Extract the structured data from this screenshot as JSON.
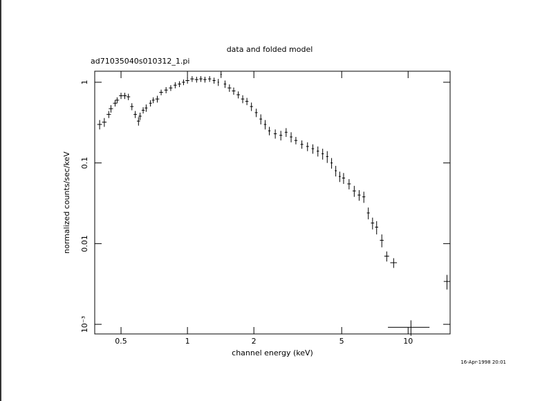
{
  "chart_data": {
    "type": "errorbar",
    "title": "data and folded model",
    "subtitle": "ad71035040s010312_1.pi",
    "xlabel": "channel energy (keV)",
    "ylabel": "normalized counts/sec/keV",
    "timestamp": "16-Apr-1998 20:01",
    "xscale": "log",
    "yscale": "log",
    "xlim": [
      0.38,
      15.5
    ],
    "ylim": [
      0.00076,
      1.37
    ],
    "xticks": [
      0.5,
      1,
      2,
      5,
      10
    ],
    "yticks": [
      {
        "value": 0.001,
        "label": "10⁻³"
      },
      0.01,
      0.1,
      1
    ],
    "color": "#000000",
    "x": [
      0.4,
      0.42,
      0.44,
      0.45,
      0.47,
      0.48,
      0.5,
      0.52,
      0.54,
      0.56,
      0.58,
      0.6,
      0.61,
      0.63,
      0.65,
      0.68,
      0.7,
      0.73,
      0.76,
      0.8,
      0.84,
      0.88,
      0.92,
      0.96,
      1.0,
      1.05,
      1.1,
      1.15,
      1.2,
      1.26,
      1.32,
      1.38,
      1.42,
      1.48,
      1.55,
      1.62,
      1.7,
      1.78,
      1.86,
      1.95,
      2.05,
      2.15,
      2.25,
      2.35,
      2.5,
      2.65,
      2.8,
      2.95,
      3.1,
      3.3,
      3.5,
      3.7,
      3.9,
      4.1,
      4.3,
      4.5,
      4.7,
      4.9,
      5.1,
      5.4,
      5.7,
      6.0,
      6.3,
      6.6,
      6.9,
      7.2,
      7.6,
      8.0,
      8.6,
      10.3,
      15.0
    ],
    "values": [
      0.3,
      0.32,
      0.4,
      0.47,
      0.55,
      0.6,
      0.68,
      0.68,
      0.66,
      0.5,
      0.4,
      0.33,
      0.38,
      0.45,
      0.48,
      0.55,
      0.6,
      0.62,
      0.75,
      0.8,
      0.85,
      0.92,
      0.95,
      1.0,
      1.05,
      1.1,
      1.08,
      1.1,
      1.08,
      1.1,
      1.05,
      1.0,
      1.25,
      0.95,
      0.85,
      0.78,
      0.7,
      0.62,
      0.58,
      0.5,
      0.42,
      0.35,
      0.3,
      0.25,
      0.23,
      0.22,
      0.24,
      0.21,
      0.19,
      0.17,
      0.16,
      0.15,
      0.14,
      0.13,
      0.12,
      0.1,
      0.08,
      0.068,
      0.065,
      0.055,
      0.045,
      0.04,
      0.038,
      0.024,
      0.018,
      0.016,
      0.011,
      0.007,
      0.0058,
      0.00092,
      0.0034
    ],
    "xerr": [
      0.01,
      0.01,
      0.01,
      0.01,
      0.01,
      0.01,
      0.01,
      0.01,
      0.01,
      0.01,
      0.01,
      0.01,
      0.01,
      0.01,
      0.01,
      0.01,
      0.01,
      0.015,
      0.015,
      0.015,
      0.015,
      0.015,
      0.015,
      0.015,
      0.02,
      0.02,
      0.02,
      0.02,
      0.02,
      0.02,
      0.02,
      0.01,
      0.01,
      0.02,
      0.03,
      0.03,
      0.03,
      0.03,
      0.03,
      0.03,
      0.03,
      0.03,
      0.03,
      0.03,
      0.04,
      0.04,
      0.04,
      0.04,
      0.05,
      0.05,
      0.05,
      0.05,
      0.05,
      0.05,
      0.05,
      0.05,
      0.05,
      0.05,
      0.08,
      0.1,
      0.1,
      0.1,
      0.1,
      0.1,
      0.12,
      0.12,
      0.15,
      0.2,
      0.3,
      2.2,
      0.5
    ],
    "yerr": [
      0.04,
      0.04,
      0.04,
      0.05,
      0.05,
      0.05,
      0.06,
      0.06,
      0.06,
      0.05,
      0.04,
      0.04,
      0.04,
      0.04,
      0.05,
      0.05,
      0.05,
      0.06,
      0.06,
      0.07,
      0.07,
      0.08,
      0.08,
      0.08,
      0.09,
      0.09,
      0.09,
      0.09,
      0.09,
      0.09,
      0.09,
      0.1,
      0.12,
      0.1,
      0.09,
      0.08,
      0.07,
      0.07,
      0.06,
      0.06,
      0.05,
      0.05,
      0.04,
      0.03,
      0.03,
      0.03,
      0.03,
      0.03,
      0.02,
      0.02,
      0.02,
      0.02,
      0.02,
      0.02,
      0.02,
      0.015,
      0.012,
      0.01,
      0.01,
      0.008,
      0.007,
      0.006,
      0.006,
      0.004,
      0.003,
      0.003,
      0.002,
      0.001,
      0.0008,
      0.0002,
      0.0007
    ]
  }
}
